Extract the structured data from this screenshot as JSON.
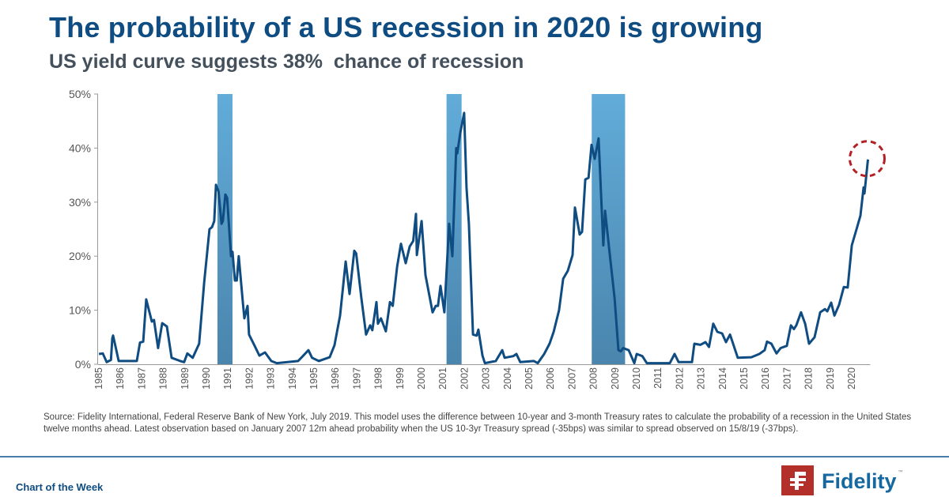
{
  "header": {
    "title": "The probability of a US recession in 2020 is growing",
    "subtitle": "US yield curve suggests 38%  chance of recession"
  },
  "chart_data": {
    "type": "line",
    "title": "",
    "xlabel": "",
    "ylabel": "",
    "xlim": [
      1985,
      2020.9
    ],
    "ylim": [
      0,
      50
    ],
    "y_ticks": [
      "0%",
      "10%",
      "20%",
      "30%",
      "40%",
      "50%"
    ],
    "y_tick_values": [
      0,
      10,
      20,
      30,
      40,
      50
    ],
    "x_ticks": [
      "1985",
      "1986",
      "1987",
      "1988",
      "1989",
      "1990",
      "1991",
      "1992",
      "1993",
      "1994",
      "1995",
      "1996",
      "1997",
      "1998",
      "1999",
      "2000",
      "2001",
      "2002",
      "2003",
      "2004",
      "2005",
      "2006",
      "2007",
      "2008",
      "2009",
      "2010",
      "2011",
      "2012",
      "2013",
      "2014",
      "2015",
      "2016",
      "2017",
      "2018",
      "2019",
      "2020"
    ],
    "grid": false,
    "line_color": "#0f4c81",
    "recession_color": "#4f8fbd",
    "annotation_color": "#b32025",
    "recession_periods": [
      [
        1990.55,
        1991.25
      ],
      [
        2001.2,
        2001.9
      ],
      [
        2007.95,
        2009.5
      ]
    ],
    "highlight_point": [
      2020.79,
      37.9
    ],
    "series": [
      {
        "x": [
          1985.04,
          1985.22,
          1985.4,
          1985.6,
          1985.66,
          1985.7,
          1985.96,
          1986.8,
          1986.95,
          1987.1,
          1987.24,
          1987.5,
          1987.6,
          1987.79,
          1987.98,
          1988.2,
          1988.42,
          1988.82,
          1989.0,
          1989.15,
          1989.4,
          1989.7,
          1989.93,
          1990.18,
          1990.3,
          1990.4,
          1990.48,
          1990.6,
          1990.74,
          1990.8,
          1990.92,
          1991.0,
          1991.18,
          1991.25,
          1991.36,
          1991.45,
          1991.54,
          1991.73,
          1991.8,
          1991.95,
          1992.02,
          1992.28,
          1992.5,
          1992.76,
          1993.05,
          1993.31,
          1994.3,
          1994.78,
          1994.95,
          1995.26,
          1995.77,
          1995.99,
          1996.25,
          1996.51,
          1996.69,
          1996.91,
          1997.0,
          1997.24,
          1997.46,
          1997.65,
          1997.75,
          1997.94,
          1998.01,
          1998.15,
          1998.38,
          1998.57,
          1998.7,
          1998.9,
          1999.08,
          1999.3,
          1999.49,
          1999.65,
          1999.78,
          1999.82,
          2000.04,
          2000.22,
          2000.55,
          2000.7,
          2000.8,
          2000.92,
          2001.1,
          2001.32,
          2001.47,
          2001.65,
          2001.7,
          2001.84,
          2002.02,
          2002.13,
          2002.24,
          2002.43,
          2002.6,
          2002.68,
          2002.87,
          2002.98,
          2003.49,
          2003.79,
          2003.9,
          2004.3,
          2004.45,
          2004.63,
          2005.26,
          2005.44,
          2005.74,
          2005.99,
          2006.18,
          2006.43,
          2006.62,
          2006.84,
          2007.06,
          2007.17,
          2007.39,
          2007.5,
          2007.65,
          2007.8,
          2007.94,
          2008.09,
          2008.27,
          2008.49,
          2008.57,
          2008.82,
          2009.01,
          2009.19,
          2009.3,
          2009.41,
          2009.67,
          2009.93,
          2010.04,
          2010.3,
          2010.51,
          2011.58,
          2011.8,
          2011.99,
          2012.61,
          2012.72,
          2013.0,
          2013.24,
          2013.4,
          2013.6,
          2013.79,
          2014.01,
          2014.19,
          2014.38,
          2014.74,
          2015.37,
          2015.74,
          2015.99,
          2016.1,
          2016.3,
          2016.54,
          2016.73,
          2017.02,
          2017.21,
          2017.35,
          2017.46,
          2017.68,
          2017.87,
          2018.05,
          2018.31,
          2018.57,
          2018.79,
          2018.9,
          2019.08,
          2019.23,
          2019.45,
          2019.67,
          2019.85,
          2020.04,
          2020.26,
          2020.44,
          2020.59,
          2020.63,
          2020.79
        ],
        "values": [
          1.9,
          2.0,
          0.4,
          0.8,
          4.8,
          5.3,
          0.6,
          0.6,
          4.0,
          4.2,
          12.0,
          7.9,
          8.2,
          3.0,
          7.6,
          7.0,
          1.2,
          0.6,
          0.4,
          2.0,
          1.2,
          3.8,
          15.0,
          25.0,
          25.4,
          26.5,
          33.2,
          32.0,
          26.0,
          26.5,
          31.4,
          30.8,
          20.0,
          20.8,
          15.5,
          15.5,
          20.0,
          11.4,
          8.5,
          10.8,
          5.5,
          3.4,
          1.6,
          2.2,
          0.6,
          0.2,
          0.6,
          2.6,
          1.2,
          0.6,
          1.3,
          3.5,
          9.0,
          19.0,
          13.0,
          21.0,
          20.5,
          12.3,
          5.5,
          7.2,
          6.3,
          11.5,
          7.5,
          8.5,
          6.1,
          11.5,
          10.8,
          18.0,
          22.3,
          18.7,
          21.8,
          22.8,
          27.8,
          20.2,
          26.5,
          16.5,
          9.6,
          10.8,
          10.8,
          14.5,
          9.6,
          26.0,
          20.0,
          40.0,
          39.0,
          42.8,
          46.5,
          32.7,
          26.0,
          5.5,
          5.3,
          6.4,
          1.6,
          0.2,
          0.6,
          2.6,
          1.2,
          1.5,
          1.9,
          0.4,
          0.6,
          0.2,
          1.9,
          3.8,
          6.0,
          10.0,
          15.8,
          17.3,
          20.2,
          29.0,
          24.0,
          24.5,
          34.2,
          34.5,
          40.6,
          38.0,
          41.8,
          22.0,
          28.4,
          19.2,
          12.3,
          2.6,
          2.4,
          3.0,
          2.6,
          0.2,
          1.9,
          1.5,
          0.2,
          0.2,
          1.9,
          0.4,
          0.4,
          3.8,
          3.6,
          4.1,
          3.2,
          7.5,
          6.0,
          5.7,
          4.1,
          5.5,
          1.2,
          1.3,
          1.9,
          2.6,
          4.2,
          3.8,
          2.0,
          3.0,
          3.4,
          7.2,
          6.5,
          7.2,
          9.6,
          7.5,
          3.8,
          5.0,
          9.6,
          10.2,
          9.8,
          11.4,
          9.0,
          11.0,
          14.3,
          14.2,
          22.0,
          25.0,
          27.5,
          32.7,
          31.6,
          37.9
        ]
      }
    ]
  },
  "footer": {
    "source": "Source: Fidelity International, Federal Reserve Bank of New York, July 2019. This model uses the difference between 10-year and 3-month Treasury rates to calculate the probability of a recession in the United States twelve months ahead. Latest observation based on January 2007 12m ahead probability when the US 10-3yr Treasury spread (-35bps) was similar to spread observed on 15/8/19 (-37bps).",
    "chart_of_the_week": "Chart of the Week",
    "logo_text": "Fidelity",
    "logo_tm": "™",
    "logo_color": "#b3302a"
  }
}
